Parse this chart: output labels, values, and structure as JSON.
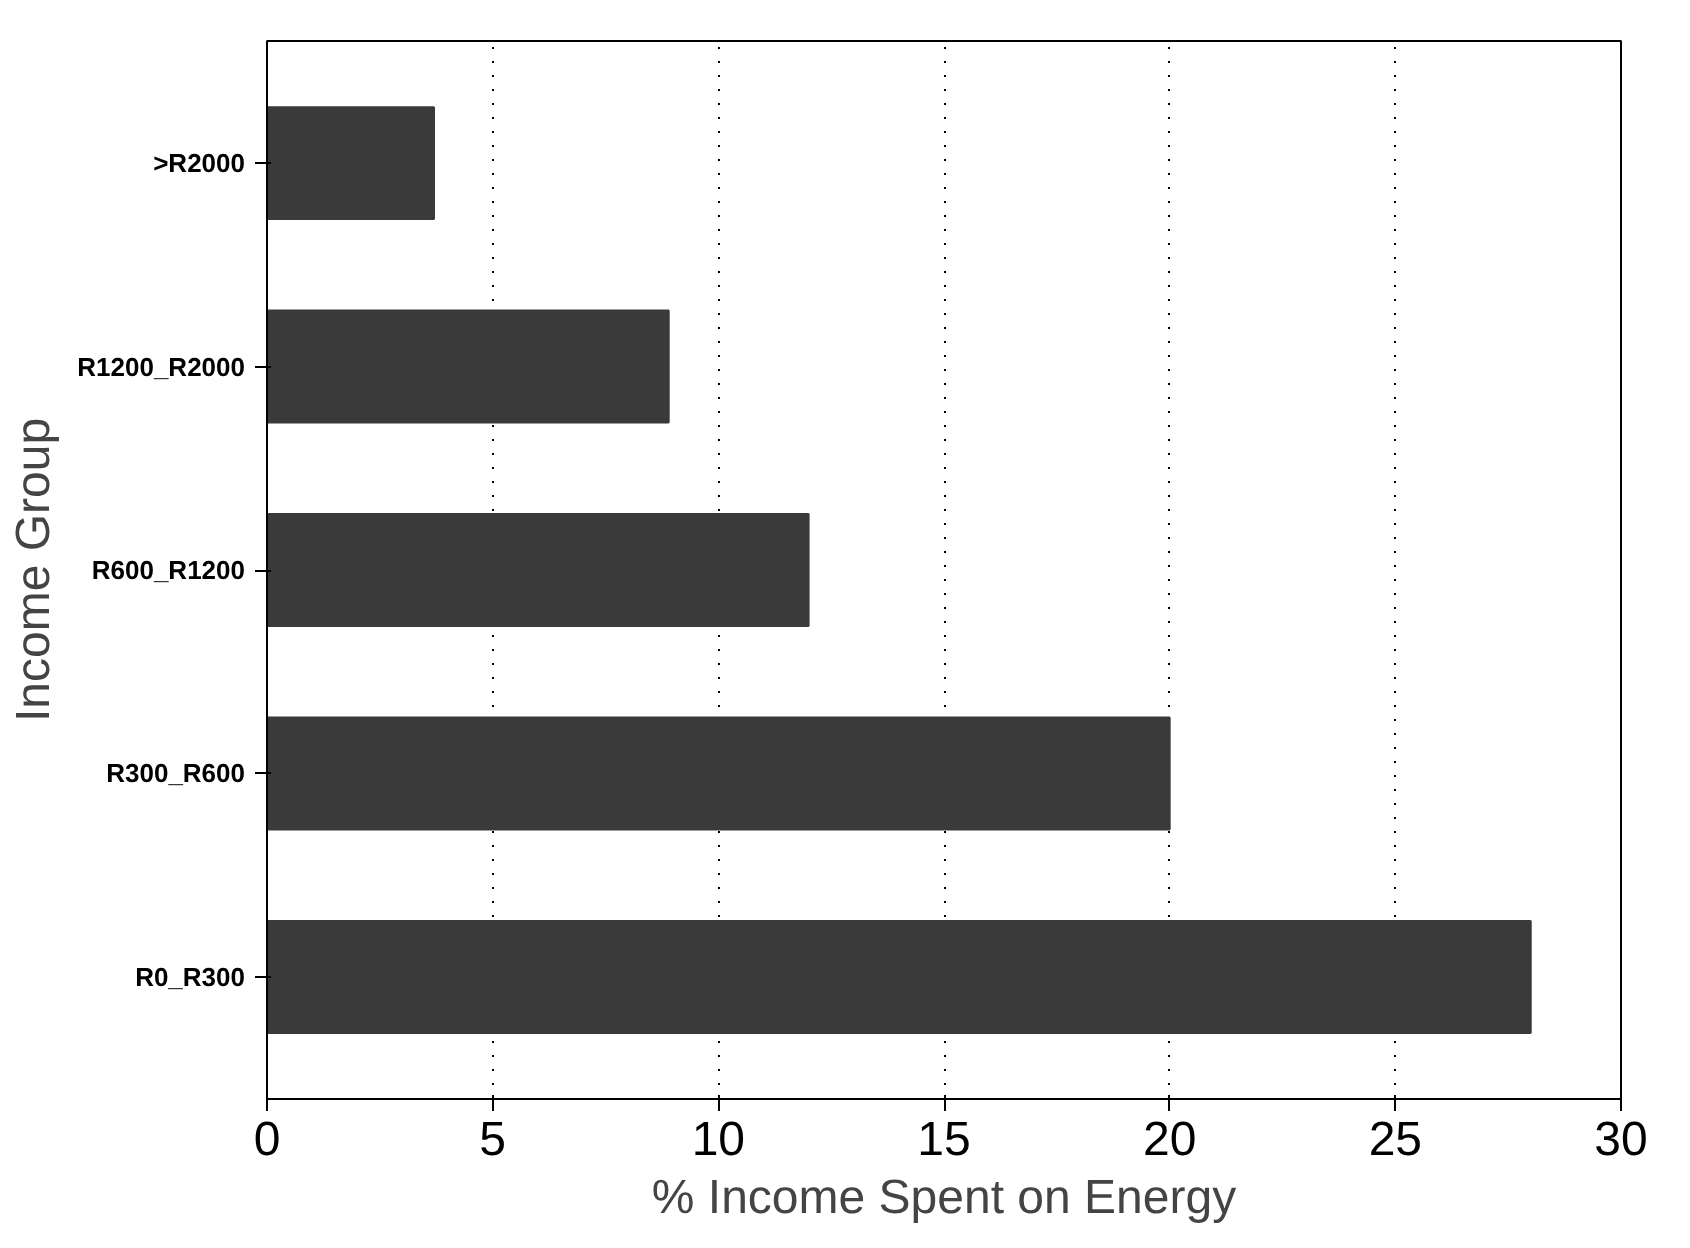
{
  "chart_data": {
    "type": "bar",
    "orientation": "horizontal",
    "categories": [
      ">R2000",
      "R1200_R2000",
      "R600_R1200",
      "R300_R600",
      "R0_R300"
    ],
    "values": [
      3.7,
      8.9,
      12.0,
      20.0,
      28.0
    ],
    "color": "#3a3a3a",
    "xlim": [
      0,
      30
    ],
    "xticks": [
      0,
      5,
      10,
      15,
      20,
      25,
      30
    ],
    "grid": "x",
    "xlabel": "% Income Spent on Energy",
    "ylabel": "Income Group"
  }
}
